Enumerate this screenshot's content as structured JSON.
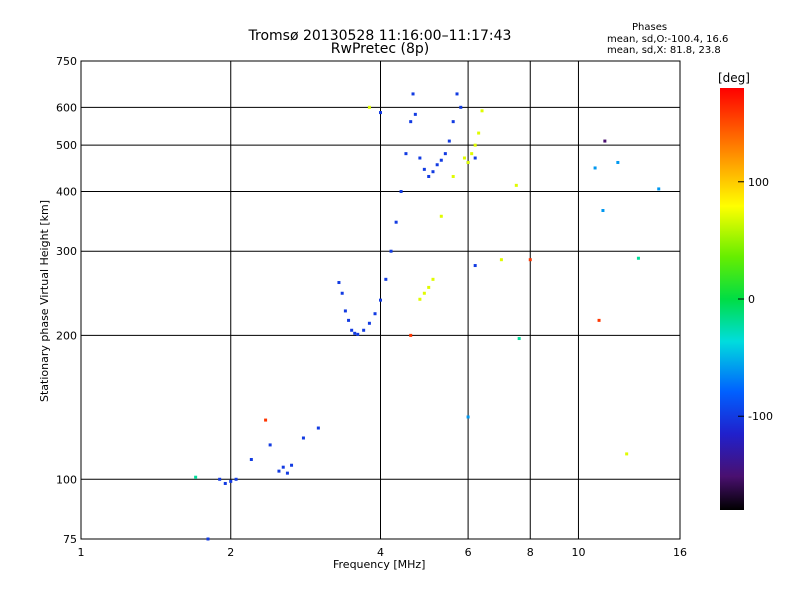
{
  "title_line1": "Tromsø 20130528 11:16:00–11:17:43",
  "title_line2": "RwPretec (8p)",
  "phases": {
    "header": "Phases",
    "line_o": "mean, sd,O:-100.4, 16.6",
    "line_x": "mean, sd,X:  81.8, 23.8"
  },
  "colorbar": {
    "label": "[deg]",
    "ticks": [
      {
        "value": 100,
        "label": "100"
      },
      {
        "value": 0,
        "label": "0"
      },
      {
        "value": -100,
        "label": "-100"
      }
    ],
    "range": [
      -180,
      180
    ]
  },
  "chart_data": {
    "type": "scatter",
    "xlabel": "Frequency [MHz]",
    "ylabel": "Stationary phase Virtual Height [km]",
    "xscale": "log",
    "yscale": "log",
    "xlim": [
      1,
      16
    ],
    "ylim": [
      75,
      750
    ],
    "x_ticks": [
      {
        "value": 1,
        "label": "1"
      },
      {
        "value": 2,
        "label": "2"
      },
      {
        "value": 4,
        "label": "4"
      },
      {
        "value": 6,
        "label": "6"
      },
      {
        "value": 8,
        "label": "8"
      },
      {
        "value": 10,
        "label": "10"
      },
      {
        "value": 16,
        "label": "16"
      }
    ],
    "y_ticks": [
      {
        "value": 75,
        "label": "75"
      },
      {
        "value": 100,
        "label": "100"
      },
      {
        "value": 200,
        "label": "200"
      },
      {
        "value": 300,
        "label": "300"
      },
      {
        "value": 400,
        "label": "400"
      },
      {
        "value": 500,
        "label": "500"
      },
      {
        "value": 600,
        "label": "600"
      },
      {
        "value": 750,
        "label": "750"
      }
    ],
    "grid": true,
    "colors": {
      "o_trace": "#1530e0",
      "x_trace": "#d8e000"
    },
    "series": [
      {
        "phase_deg": -100,
        "points": [
          [
            1.8,
            75
          ],
          [
            1.9,
            100
          ],
          [
            1.95,
            98
          ],
          [
            2.0,
            99
          ],
          [
            2.05,
            100
          ],
          [
            2.2,
            110
          ],
          [
            2.4,
            118
          ],
          [
            2.5,
            104
          ],
          [
            2.55,
            106
          ],
          [
            2.6,
            103
          ],
          [
            2.65,
            107
          ],
          [
            2.8,
            122
          ],
          [
            3.0,
            128
          ],
          [
            3.3,
            258
          ],
          [
            3.35,
            245
          ],
          [
            3.4,
            225
          ],
          [
            3.45,
            215
          ],
          [
            3.5,
            205
          ],
          [
            3.55,
            202
          ],
          [
            3.6,
            201
          ],
          [
            3.7,
            205
          ],
          [
            3.8,
            212
          ],
          [
            3.9,
            222
          ],
          [
            4.0,
            237
          ],
          [
            4.1,
            262
          ],
          [
            4.2,
            300
          ],
          [
            4.3,
            345
          ],
          [
            4.4,
            400
          ],
          [
            4.5,
            480
          ],
          [
            4.6,
            560
          ],
          [
            4.65,
            640
          ],
          [
            4.7,
            580
          ],
          [
            4.8,
            470
          ],
          [
            4.9,
            445
          ],
          [
            5.0,
            430
          ],
          [
            5.1,
            440
          ],
          [
            5.2,
            455
          ],
          [
            5.3,
            465
          ],
          [
            5.4,
            480
          ],
          [
            5.5,
            510
          ],
          [
            5.6,
            560
          ],
          [
            5.7,
            640
          ],
          [
            5.8,
            600
          ],
          [
            6.2,
            280
          ],
          [
            6.0,
            460
          ],
          [
            6.2,
            470
          ],
          [
            4.0,
            585
          ]
        ]
      },
      {
        "phase_deg": 90,
        "points": [
          [
            4.8,
            238
          ],
          [
            4.9,
            245
          ],
          [
            5.0,
            252
          ],
          [
            5.1,
            262
          ],
          [
            5.3,
            355
          ],
          [
            5.6,
            430
          ],
          [
            5.9,
            470
          ],
          [
            6.0,
            460
          ],
          [
            6.1,
            480
          ],
          [
            6.2,
            500
          ],
          [
            6.3,
            530
          ],
          [
            6.4,
            590
          ],
          [
            7.0,
            288
          ],
          [
            7.5,
            412
          ],
          [
            3.8,
            600
          ],
          [
            12.5,
            113
          ]
        ]
      },
      {
        "phase_deg": -20,
        "points": [
          [
            1.7,
            101
          ],
          [
            7.6,
            197
          ],
          [
            13.2,
            290
          ]
        ]
      },
      {
        "phase_deg": -60,
        "points": [
          [
            10.8,
            448
          ],
          [
            12.0,
            460
          ],
          [
            14.5,
            405
          ],
          [
            6.0,
            135
          ],
          [
            11.2,
            365
          ]
        ]
      },
      {
        "phase_deg": 160,
        "points": [
          [
            11.0,
            215
          ],
          [
            2.35,
            133
          ],
          [
            8.0,
            288
          ],
          [
            4.6,
            200
          ]
        ]
      },
      {
        "phase_deg": -150,
        "points": [
          [
            11.3,
            510
          ]
        ]
      }
    ]
  }
}
